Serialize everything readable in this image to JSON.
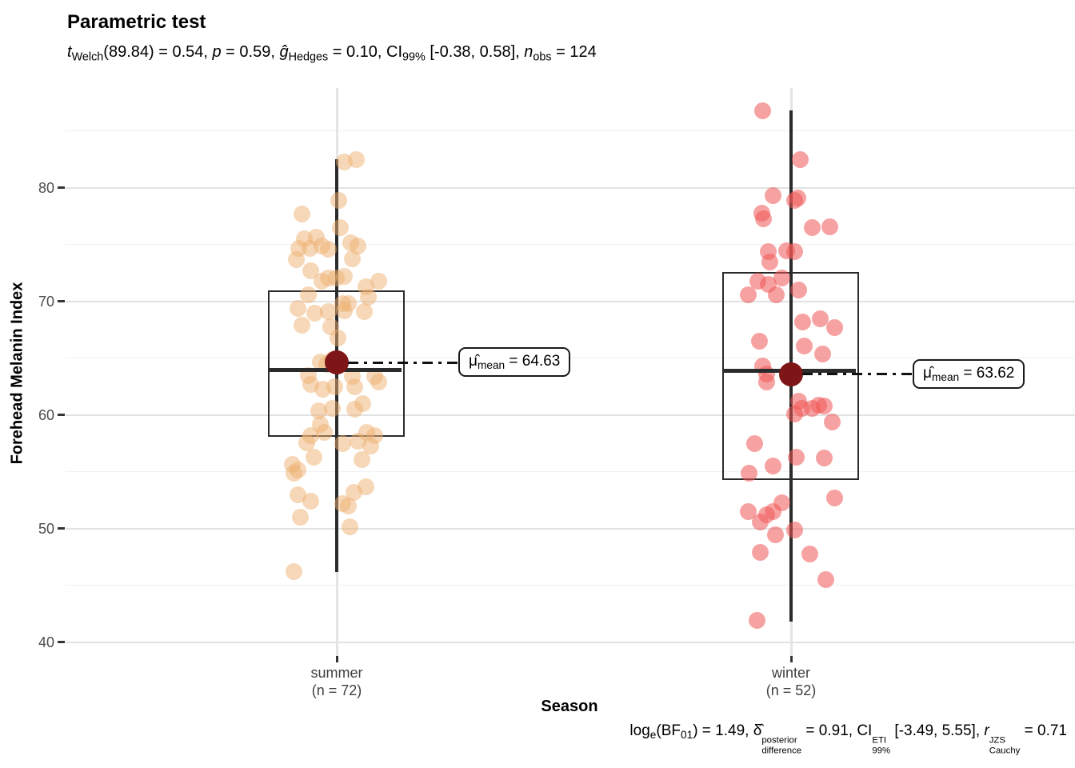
{
  "title": "Parametric test",
  "subtitle_segments": [
    {
      "t": "t",
      "i": true
    },
    {
      "t": "Welch",
      "sub": true
    },
    {
      "t": "(89.84) = 0.54, "
    },
    {
      "t": "p",
      "i": true
    },
    {
      "t": " = 0.59, "
    },
    {
      "t": "ĝ",
      "i": true
    },
    {
      "t": "Hedges",
      "sub": true
    },
    {
      "t": " = 0.10, CI"
    },
    {
      "t": "99%",
      "sub": true
    },
    {
      "t": " [-0.38, 0.58], "
    },
    {
      "t": "n",
      "i": true
    },
    {
      "t": "obs",
      "sub": true
    },
    {
      "t": " = 124"
    }
  ],
  "caption_segments": [
    {
      "t": "log"
    },
    {
      "t": "e",
      "sub": true
    },
    {
      "t": "(BF"
    },
    {
      "t": "01",
      "sub": true
    },
    {
      "t": ") = 1.49, "
    },
    {
      "t": "δ̂"
    },
    {
      "stack": {
        "sup": "posterior",
        "sub": "difference"
      }
    },
    {
      "t": " = 0.91, CI"
    },
    {
      "stack": {
        "sup": "ETI",
        "sub": "99%"
      }
    },
    {
      "t": " [-3.49, 5.55], "
    },
    {
      "t": "r",
      "i": true
    },
    {
      "stack": {
        "sup": "JZS",
        "sub": "Cauchy"
      }
    },
    {
      "t": " = 0.71"
    }
  ],
  "y_axis": {
    "label": "Forehead Melanin Index",
    "major_ticks": [
      40,
      50,
      60,
      70,
      80
    ],
    "minor_ticks": [
      45,
      55,
      65,
      75,
      85
    ],
    "range": [
      38.8,
      88.8
    ]
  },
  "x_axis": {
    "label": "Season",
    "categories": [
      {
        "name": "summer",
        "n_label": "(n = 72)"
      },
      {
        "name": "winter",
        "n_label": "(n = 52)"
      }
    ]
  },
  "colors": {
    "summer_point": "rgba(238,176,112,0.5)",
    "winter_point": "rgba(240,85,85,0.55)",
    "mean_dot": "#7e1516",
    "box_line": "#2b2b2b",
    "grid_major": "#e2e2e2",
    "grid_minor": "#f1f1f1",
    "grid_vertical": "#e4e4e4"
  },
  "chart_data": {
    "type": "boxplot_jitter",
    "title": "Parametric test",
    "xlabel": "Season",
    "ylabel": "Forehead Melanin Index",
    "ylim": [
      38.8,
      88.8
    ],
    "grid": true,
    "stats": {
      "subtitle": {
        "test": "t_Welch",
        "df": 89.84,
        "t": 0.54,
        "p": 0.59,
        "g_hedges": 0.1,
        "ci_level": "99%",
        "ci": [
          -0.38,
          0.58
        ],
        "n_obs": 124
      },
      "caption": {
        "log_e_BF01": 1.49,
        "delta_posterior_difference": 0.91,
        "ci_level_eti": "99%",
        "ci_eti": [
          -3.49,
          5.55
        ],
        "r_cauchy_jzs": 0.71
      }
    },
    "groups": [
      {
        "name": "summer",
        "n": 72,
        "mean": 64.63,
        "mean_label_segments": [
          {
            "t": "μ̂"
          },
          {
            "t": "mean",
            "sub": true
          },
          {
            "t": " = 64.63"
          }
        ],
        "box": {
          "whisker_low": 46.2,
          "q1": 58.0,
          "median": 64.0,
          "q3": 71.0,
          "whisker_high": 82.5
        },
        "points_note": "each point = [x-jitter px from category center, Forehead Melanin Index value]",
        "points": [
          [
            9,
            82.3
          ],
          [
            24,
            82.5
          ],
          [
            2,
            78.9
          ],
          [
            4,
            76.5
          ],
          [
            -44,
            77.7
          ],
          [
            -26,
            75.7
          ],
          [
            -48,
            74.7
          ],
          [
            -34,
            74.7
          ],
          [
            -19,
            74.9
          ],
          [
            -11,
            74.6
          ],
          [
            17,
            75.2
          ],
          [
            -51,
            73.7
          ],
          [
            19,
            73.8
          ],
          [
            -33,
            72.7
          ],
          [
            -11,
            72.1
          ],
          [
            -19,
            71.8
          ],
          [
            -1,
            72.1
          ],
          [
            36,
            71.3
          ],
          [
            52,
            71.8
          ],
          [
            39,
            70.4
          ],
          [
            -36,
            70.6
          ],
          [
            -49,
            69.4
          ],
          [
            -44,
            67.9
          ],
          [
            -28,
            69.0
          ],
          [
            -11,
            69.1
          ],
          [
            -8,
            67.8
          ],
          [
            7,
            69.8
          ],
          [
            14,
            69.8
          ],
          [
            9,
            69.2
          ],
          [
            34,
            69.1
          ],
          [
            1,
            66.8
          ],
          [
            -21,
            64.7
          ],
          [
            -6,
            64.9
          ],
          [
            -36,
            63.5
          ],
          [
            -33,
            62.7
          ],
          [
            -18,
            62.3
          ],
          [
            19,
            63.4
          ],
          [
            22,
            62.5
          ],
          [
            47,
            63.4
          ],
          [
            52,
            62.9
          ],
          [
            -6,
            60.6
          ],
          [
            22,
            60.5
          ],
          [
            32,
            61.0
          ],
          [
            -21,
            59.2
          ],
          [
            -16,
            58.5
          ],
          [
            -33,
            58.2
          ],
          [
            -38,
            57.6
          ],
          [
            7,
            57.5
          ],
          [
            26,
            57.7
          ],
          [
            42,
            57.3
          ],
          [
            47,
            58.2
          ],
          [
            37,
            58.5
          ],
          [
            -29,
            56.3
          ],
          [
            -56,
            55.7
          ],
          [
            -54,
            54.9
          ],
          [
            -49,
            55.2
          ],
          [
            31,
            56.1
          ],
          [
            -49,
            53.0
          ],
          [
            -33,
            52.4
          ],
          [
            21,
            53.2
          ],
          [
            36,
            53.7
          ],
          [
            7,
            52.2
          ],
          [
            14,
            52.0
          ],
          [
            -46,
            51.0
          ],
          [
            16,
            50.2
          ],
          [
            -54,
            46.2
          ],
          [
            -13,
            64.5
          ],
          [
            9,
            72.2
          ],
          [
            26,
            74.9
          ],
          [
            -41,
            75.5
          ],
          [
            -3,
            62.5
          ],
          [
            -23,
            60.4
          ]
        ]
      },
      {
        "name": "winter",
        "n": 52,
        "mean": 63.62,
        "mean_label_segments": [
          {
            "t": "μ̂"
          },
          {
            "t": "mean",
            "sub": true
          },
          {
            "t": " = 63.62"
          }
        ],
        "box": {
          "whisker_low": 41.8,
          "q1": 54.2,
          "median": 63.9,
          "q3": 72.6,
          "whisker_high": 86.8
        },
        "points_note": "each point = [x-jitter px from category center, Forehead Melanin Index value]",
        "points": [
          [
            -36,
            86.8
          ],
          [
            11,
            82.5
          ],
          [
            -23,
            79.3
          ],
          [
            8,
            79.1
          ],
          [
            4,
            78.9
          ],
          [
            -37,
            77.8
          ],
          [
            -35,
            77.3
          ],
          [
            26,
            76.5
          ],
          [
            48,
            76.6
          ],
          [
            -29,
            74.4
          ],
          [
            -6,
            74.5
          ],
          [
            4,
            74.4
          ],
          [
            -27,
            73.5
          ],
          [
            -12,
            72.1
          ],
          [
            -42,
            71.8
          ],
          [
            -29,
            71.5
          ],
          [
            -54,
            70.6
          ],
          [
            -19,
            70.6
          ],
          [
            9,
            71.0
          ],
          [
            14,
            68.2
          ],
          [
            36,
            68.5
          ],
          [
            54,
            67.7
          ],
          [
            -40,
            66.5
          ],
          [
            16,
            66.1
          ],
          [
            39,
            65.4
          ],
          [
            -36,
            64.3
          ],
          [
            -31,
            63.6
          ],
          [
            -31,
            62.9
          ],
          [
            9,
            61.2
          ],
          [
            13,
            60.6
          ],
          [
            26,
            60.6
          ],
          [
            34,
            60.9
          ],
          [
            41,
            60.8
          ],
          [
            4,
            60.1
          ],
          [
            51,
            59.4
          ],
          [
            -46,
            57.5
          ],
          [
            -23,
            55.5
          ],
          [
            -53,
            54.9
          ],
          [
            6,
            56.3
          ],
          [
            41,
            56.2
          ],
          [
            -12,
            52.3
          ],
          [
            -23,
            51.5
          ],
          [
            -54,
            51.5
          ],
          [
            -39,
            50.6
          ],
          [
            -31,
            51.2
          ],
          [
            -20,
            49.5
          ],
          [
            4,
            49.9
          ],
          [
            -39,
            47.9
          ],
          [
            23,
            47.8
          ],
          [
            43,
            45.5
          ],
          [
            54,
            52.7
          ],
          [
            -43,
            41.9
          ]
        ]
      }
    ]
  }
}
